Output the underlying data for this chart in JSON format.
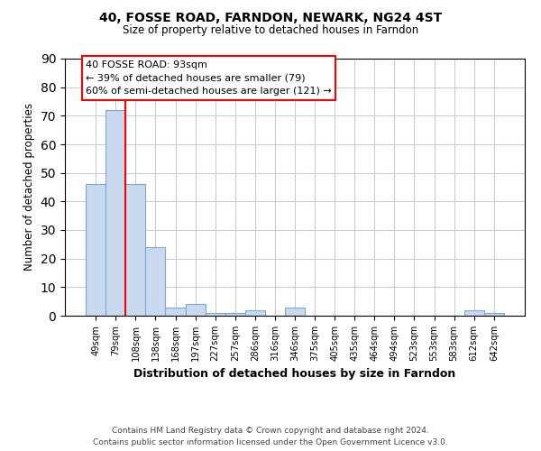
{
  "title_line1": "40, FOSSE ROAD, FARNDON, NEWARK, NG24 4ST",
  "title_line2": "Size of property relative to detached houses in Farndon",
  "xlabel": "Distribution of detached houses by size in Farndon",
  "ylabel": "Number of detached properties",
  "categories": [
    "49sqm",
    "79sqm",
    "108sqm",
    "138sqm",
    "168sqm",
    "197sqm",
    "227sqm",
    "257sqm",
    "286sqm",
    "316sqm",
    "346sqm",
    "375sqm",
    "405sqm",
    "435sqm",
    "464sqm",
    "494sqm",
    "523sqm",
    "553sqm",
    "583sqm",
    "612sqm",
    "642sqm"
  ],
  "values": [
    46,
    72,
    46,
    24,
    3,
    4,
    1,
    1,
    2,
    0,
    3,
    0,
    0,
    0,
    0,
    0,
    0,
    0,
    0,
    2,
    1
  ],
  "bar_color": "#c8d9f0",
  "bar_edge_color": "#7aaad0",
  "red_line_x": 1.5,
  "annotation_text": "40 FOSSE ROAD: 93sqm\n← 39% of detached houses are smaller (79)\n60% of semi-detached houses are larger (121) →",
  "footnote": "Contains HM Land Registry data © Crown copyright and database right 2024.\nContains public sector information licensed under the Open Government Licence v3.0.",
  "ylim": [
    0,
    90
  ],
  "yticks": [
    0,
    10,
    20,
    30,
    40,
    50,
    60,
    70,
    80,
    90
  ],
  "background_color": "#ffffff",
  "grid_color": "#cccccc"
}
